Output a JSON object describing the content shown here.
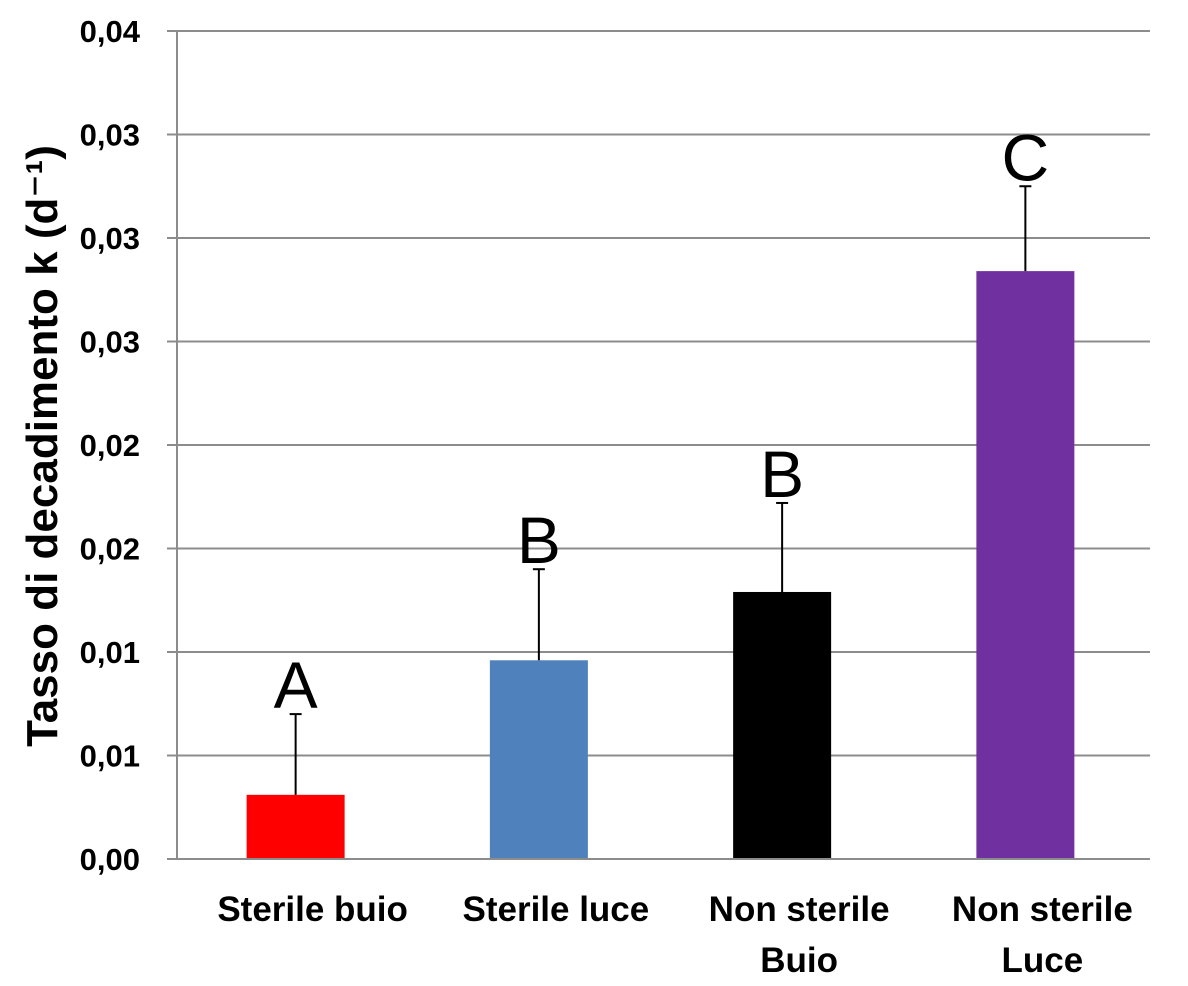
{
  "chart_data": {
    "type": "bar",
    "title": "",
    "xlabel": "",
    "ylabel": "Tasso di decadimento k (d⁻¹)",
    "ylim": [
      0,
      0.04
    ],
    "y_tick_values": [
      0,
      0.005,
      0.01,
      0.015,
      0.02,
      0.025,
      0.03,
      0.035,
      0.04
    ],
    "y_tick_labels": [
      "0,00",
      "0,01",
      "0,01",
      "0,02",
      "0,02",
      "0,03",
      "0,03",
      "0,03",
      "0,04"
    ],
    "grid": true,
    "legend": "none",
    "categories": [
      [
        "Sterile buio"
      ],
      [
        "Sterile luce"
      ],
      [
        "Non sterile",
        "Buio"
      ],
      [
        "Non sterile",
        "Luce"
      ]
    ],
    "values": [
      0.0031,
      0.0096,
      0.0129,
      0.0284
    ],
    "error_plus": [
      0.0039,
      0.0044,
      0.0043,
      0.0041
    ],
    "significance_labels": [
      "A",
      "B",
      "B",
      "C"
    ],
    "colors": [
      "#ff0000",
      "#4f81bd",
      "#000000",
      "#7030a0"
    ],
    "gridline_color": "#8c8c8c",
    "axis_color": "#8c8c8c"
  }
}
